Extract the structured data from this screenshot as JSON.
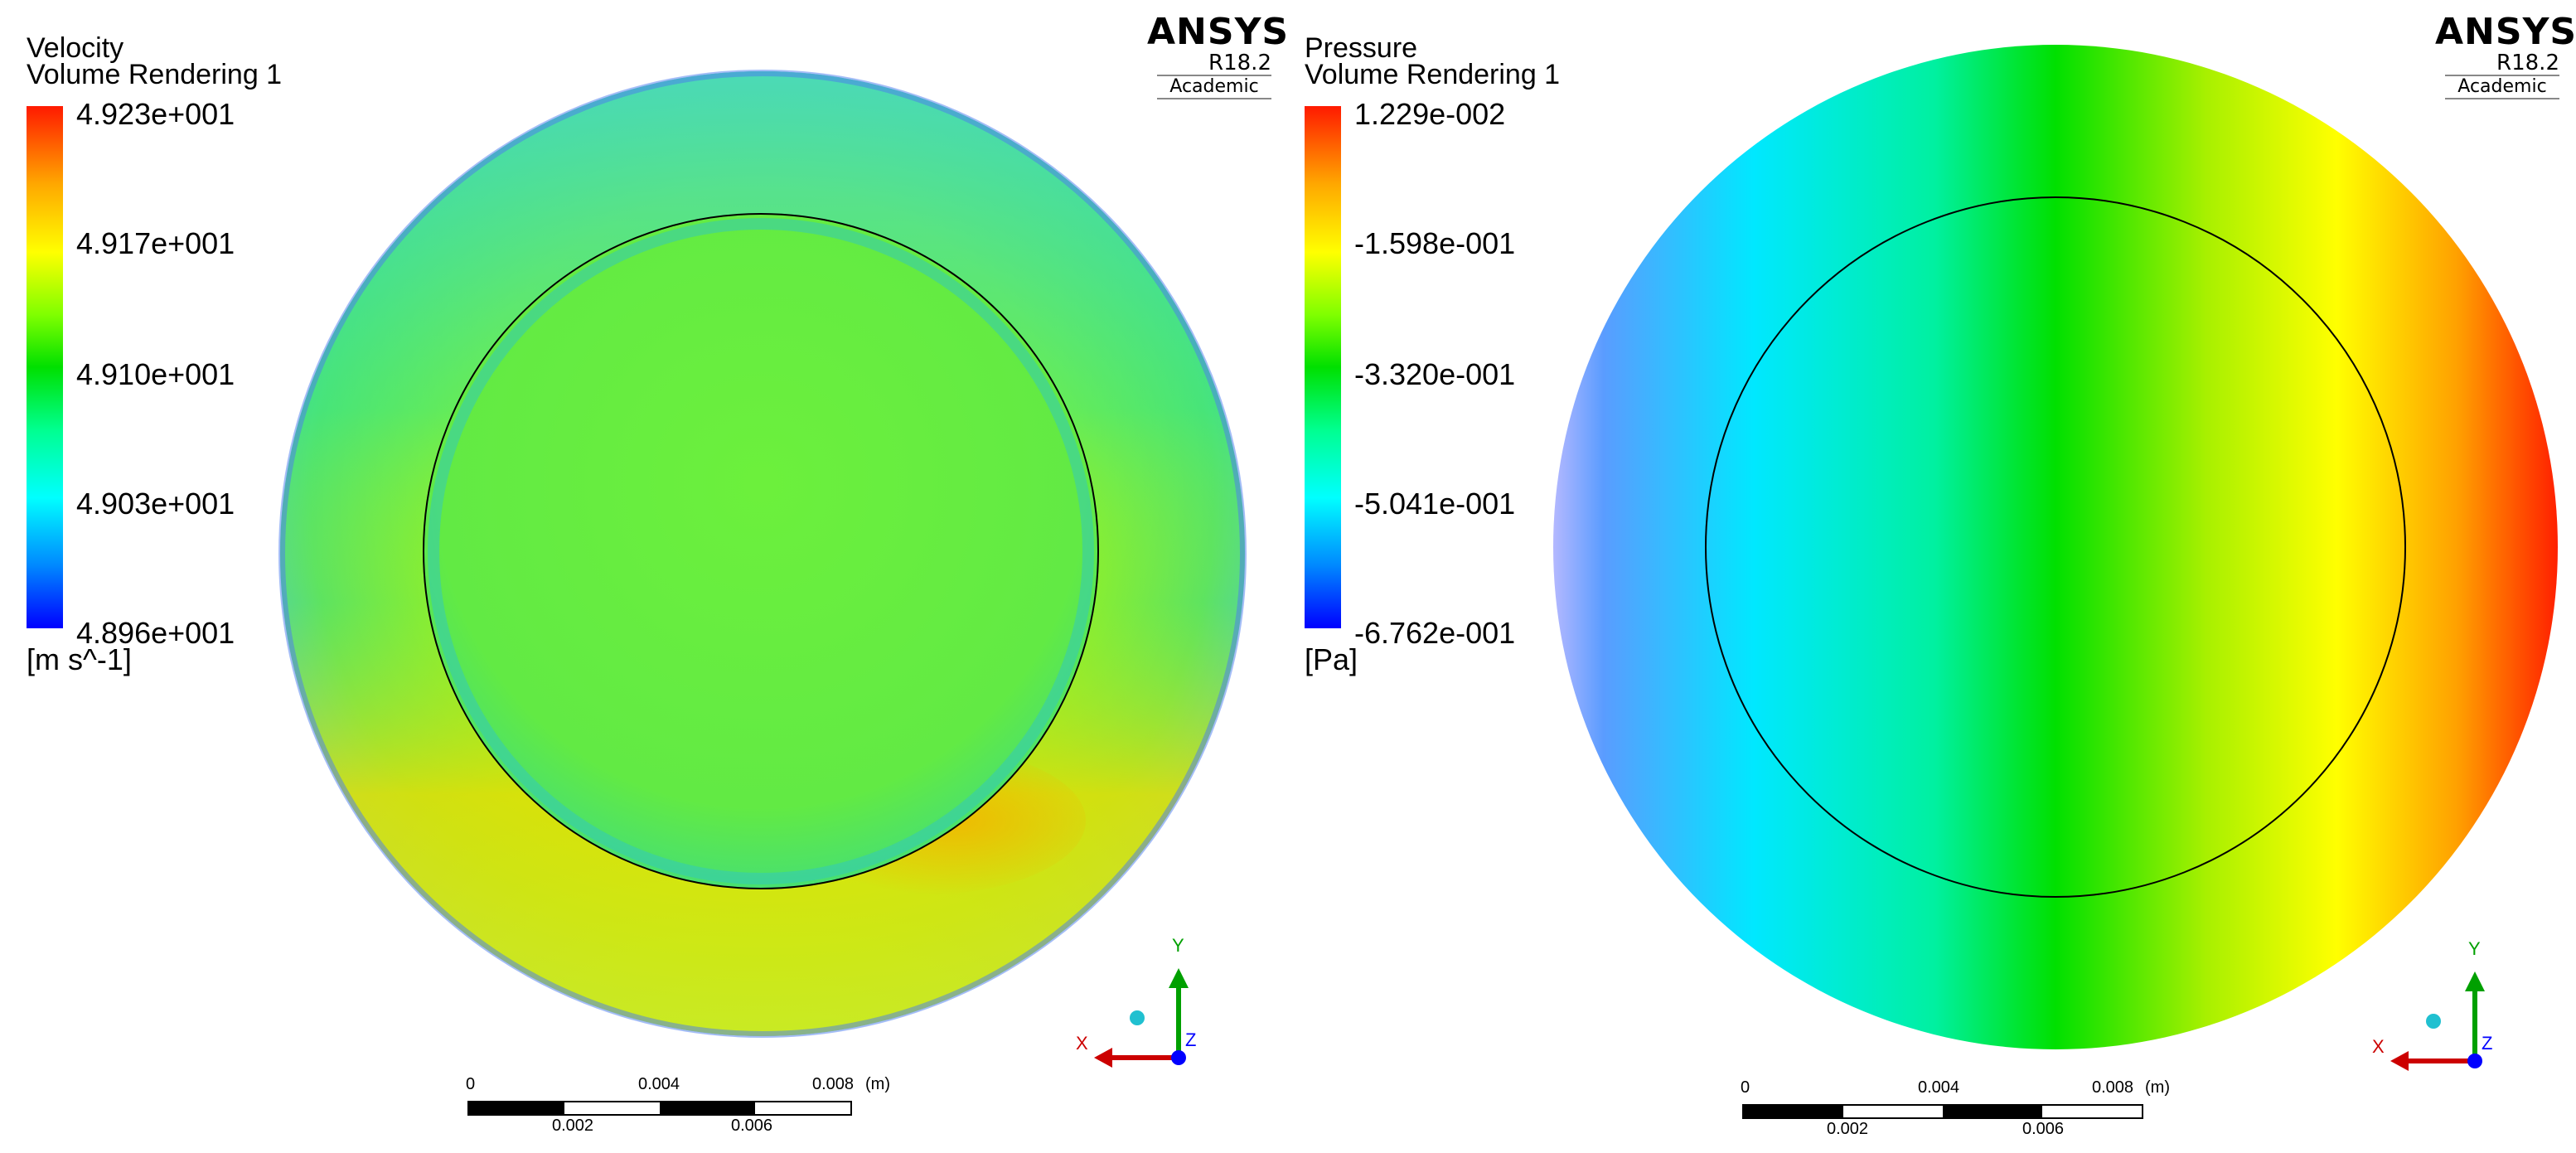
{
  "panels": [
    {
      "variable": "Velocity",
      "renderer": "Volume Rendering 1",
      "legend": {
        "ticks": [
          "4.923e+001",
          "4.917e+001",
          "4.910e+001",
          "4.903e+001",
          "4.896e+001"
        ],
        "unit": "[m s^-1]"
      },
      "logo": {
        "brand": "ANSYS",
        "version": "R18.2",
        "edition": "Academic"
      },
      "scale": {
        "top_labels": [
          "0",
          "0.004",
          "0.008"
        ],
        "unit": "(m)",
        "bottom_labels": [
          "0.002",
          "0.006"
        ]
      },
      "axes": {
        "x": "X",
        "y": "Y",
        "z": "Z"
      }
    },
    {
      "variable": "Pressure",
      "renderer": "Volume Rendering 1",
      "legend": {
        "ticks": [
          "1.229e-002",
          "-1.598e-001",
          "-3.320e-001",
          "-5.041e-001",
          "-6.762e-001"
        ],
        "unit": "[Pa]"
      },
      "logo": {
        "brand": "ANSYS",
        "version": "R18.2",
        "edition": "Academic"
      },
      "scale": {
        "top_labels": [
          "0",
          "0.004",
          "0.008"
        ],
        "unit": "(m)",
        "bottom_labels": [
          "0.002",
          "0.006"
        ]
      },
      "axes": {
        "x": "X",
        "y": "Y",
        "z": "Z"
      }
    }
  ],
  "colors": {
    "axis_x": "#cc0000",
    "axis_y": "#00a000",
    "axis_z": "#0000ff",
    "outline": "#000000"
  }
}
